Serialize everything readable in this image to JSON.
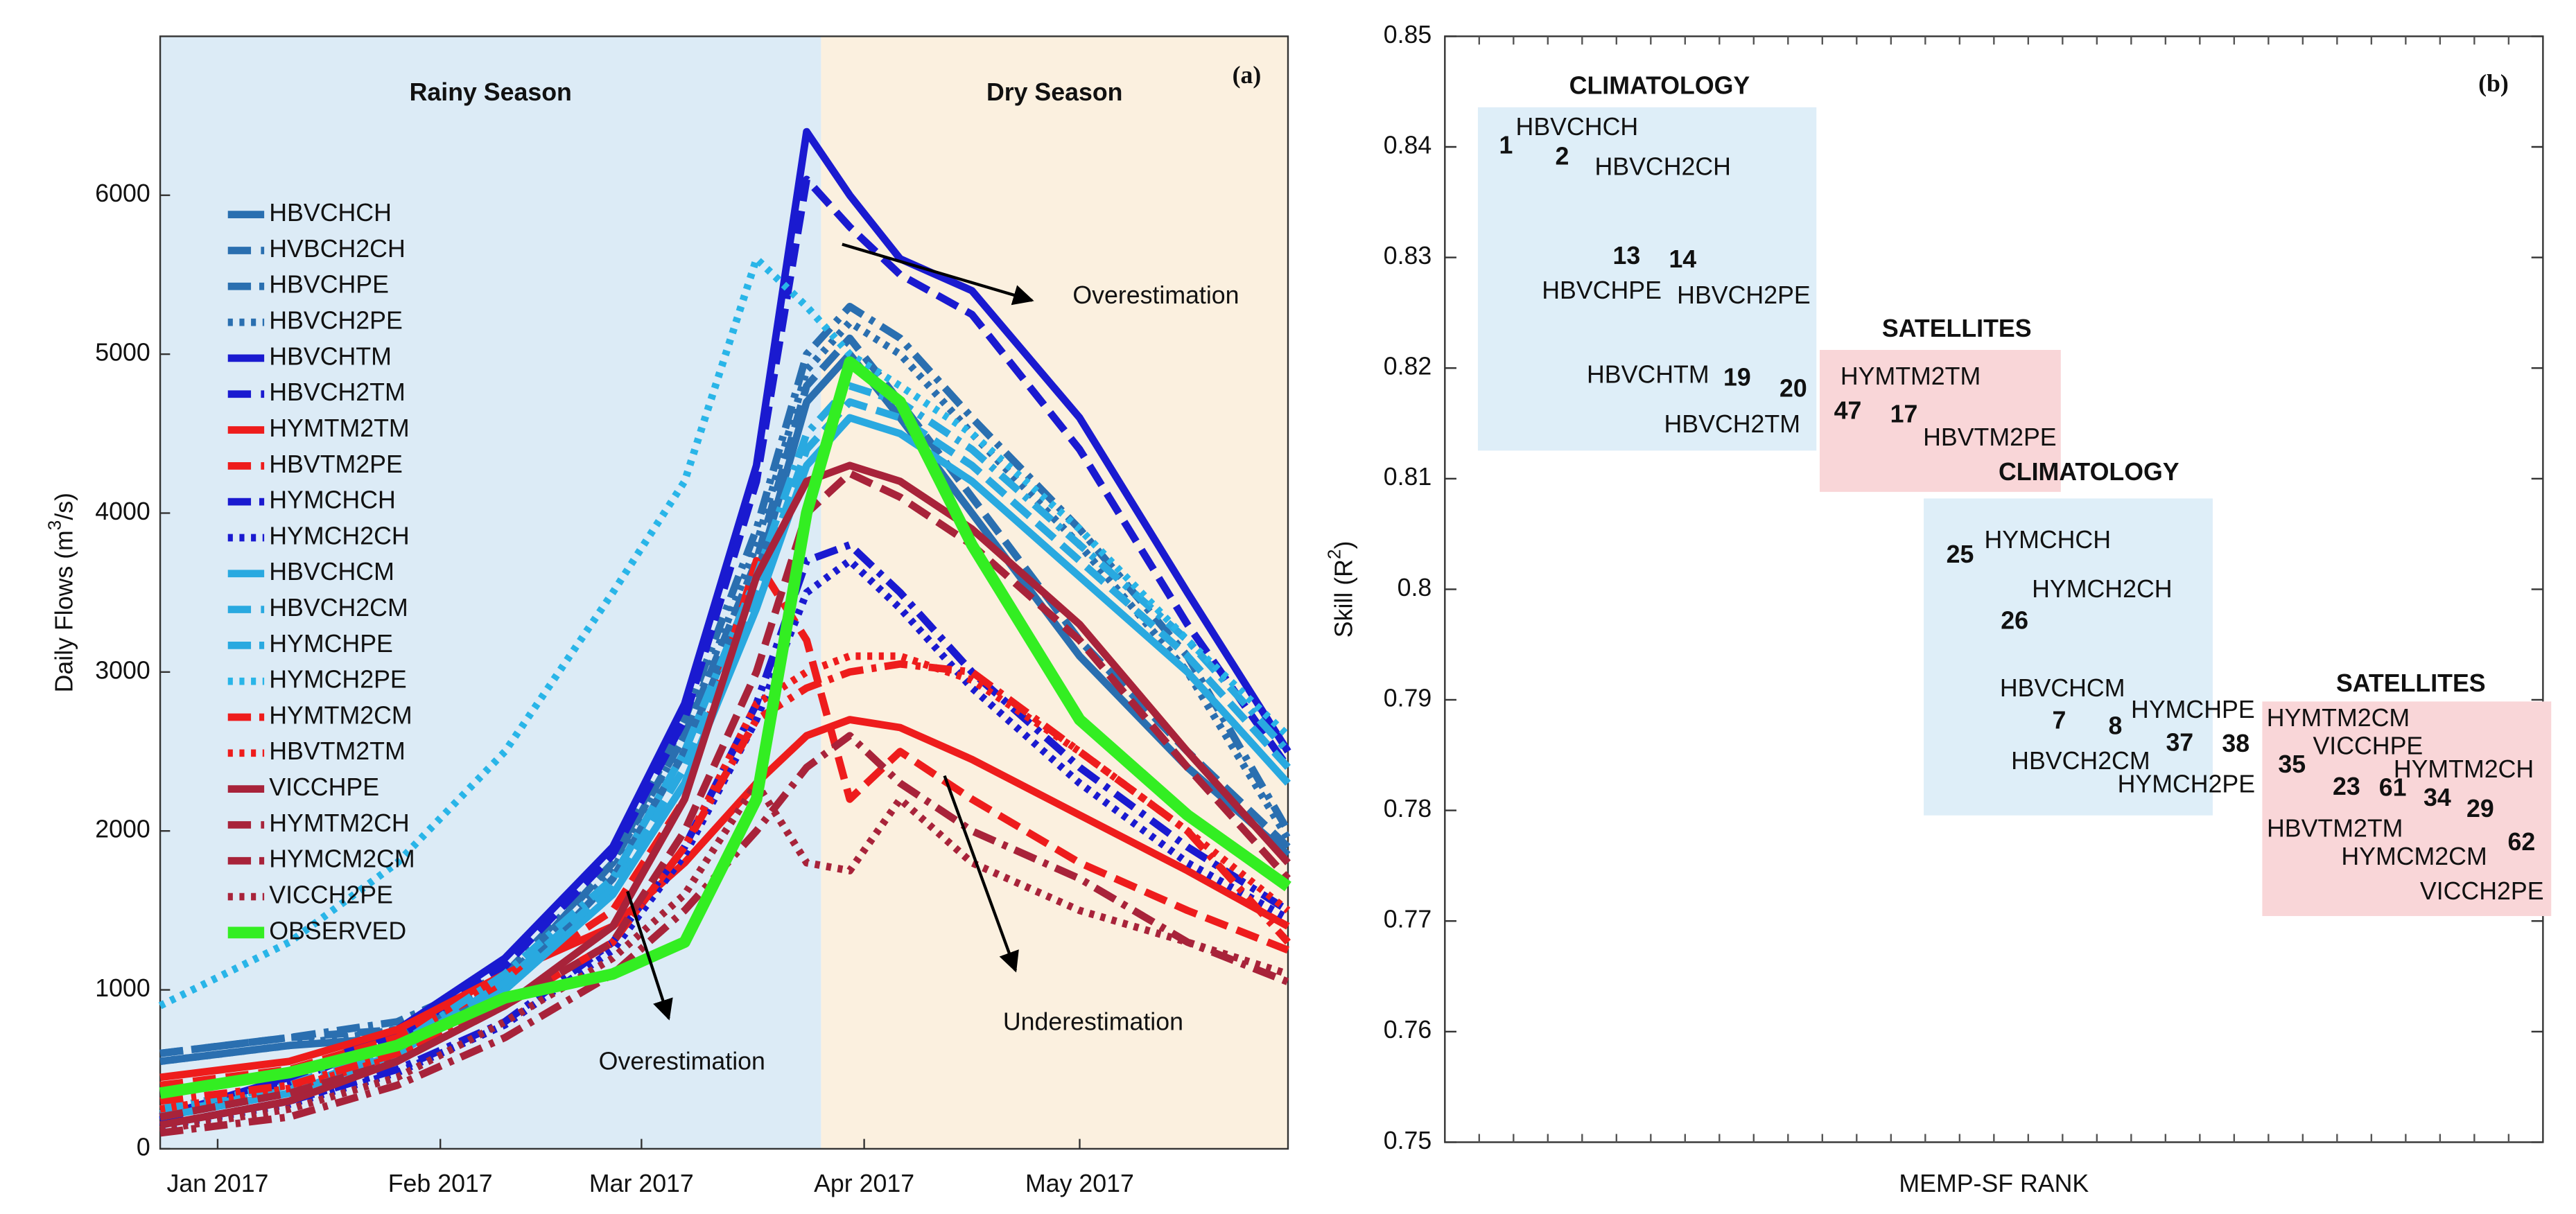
{
  "chart_data": [
    {
      "type": "line",
      "panel_label": "(a)",
      "ylabel_parts": [
        "Daily Flows (m",
        "3",
        "/s)"
      ],
      "xlim": [
        -8,
        149
      ],
      "xticks": [
        {
          "value": 0,
          "label": "Jan 2017"
        },
        {
          "value": 31,
          "label": "Feb 2017"
        },
        {
          "value": 59,
          "label": "Mar 2017"
        },
        {
          "value": 90,
          "label": "Apr 2017"
        },
        {
          "value": 120,
          "label": "May 2017"
        }
      ],
      "ylim": [
        0,
        7000
      ],
      "yticks": [
        0,
        1000,
        2000,
        3000,
        4000,
        5000,
        6000
      ],
      "regions": [
        {
          "label": "Rainy Season",
          "x_range": [
            -8,
            84
          ],
          "color": "#dcebf6",
          "text_color": "#1f78c8"
        },
        {
          "label": "Dry Season",
          "x_range": [
            84,
            149
          ],
          "color": "#fbf0df",
          "text_color": "#f5a623"
        }
      ],
      "annotations": [
        {
          "text": "Overestimation"
        },
        {
          "text": "Overestimation"
        },
        {
          "text": "Underestimation"
        }
      ],
      "x": [
        -8,
        10,
        25,
        40,
        55,
        65,
        75,
        82,
        88,
        95,
        105,
        120,
        135,
        149
      ],
      "series": [
        {
          "name": "HBVCHCH",
          "color": "#2a6fb0",
          "dash": "solid",
          "values": [
            550,
            650,
            700,
            1000,
            1700,
            2500,
            3600,
            4700,
            5000,
            4600,
            4000,
            3100,
            2400,
            1850
          ]
        },
        {
          "name": "HVBCH2CH",
          "color": "#2a6fb0",
          "dash": "dashed",
          "values": [
            600,
            700,
            750,
            1050,
            1800,
            2600,
            3700,
            4800,
            5100,
            4700,
            4100,
            3200,
            2500,
            1900
          ]
        },
        {
          "name": "HBVCHPE",
          "color": "#2a6fb0",
          "dash": "dashdot",
          "values": [
            600,
            700,
            800,
            1100,
            1800,
            2700,
            3900,
            5000,
            5300,
            5100,
            4600,
            3900,
            3100,
            2000
          ]
        },
        {
          "name": "HBVCH2PE",
          "color": "#2a6fb0",
          "dash": "dotted",
          "values": [
            550,
            650,
            750,
            1050,
            1750,
            2600,
            3800,
            4900,
            5200,
            5000,
            4500,
            3800,
            3000,
            1950
          ]
        },
        {
          "name": "HBVCHTM",
          "color": "#1a1ad0",
          "dash": "solid",
          "values": [
            200,
            450,
            750,
            1200,
            1900,
            2800,
            4300,
            6400,
            6000,
            5600,
            5400,
            4600,
            3500,
            2500
          ]
        },
        {
          "name": "HBVCH2TM",
          "color": "#1a1ad0",
          "dash": "dashed",
          "values": [
            180,
            420,
            700,
            1150,
            1850,
            2700,
            4200,
            6100,
            5800,
            5500,
            5250,
            4400,
            3300,
            2400
          ]
        },
        {
          "name": "HYMTM2TM",
          "color": "#ee1c1c",
          "dash": "solid",
          "values": [
            450,
            550,
            750,
            1100,
            1400,
            1800,
            2300,
            2600,
            2700,
            2650,
            2450,
            2100,
            1750,
            1400
          ]
        },
        {
          "name": "HBVTM2PE",
          "color": "#ee1c1c",
          "dash": "dashed",
          "values": [
            400,
            500,
            700,
            1050,
            1500,
            2200,
            3700,
            3200,
            2200,
            2500,
            2200,
            1800,
            1500,
            1250
          ]
        },
        {
          "name": "HYMCHCH",
          "color": "#1a1ad0",
          "dash": "dashdot",
          "values": [
            150,
            300,
            500,
            800,
            1300,
            1900,
            2800,
            3700,
            3800,
            3500,
            3000,
            2400,
            1900,
            1500
          ]
        },
        {
          "name": "HYMCH2CH",
          "color": "#1a1ad0",
          "dash": "dotted",
          "values": [
            140,
            280,
            480,
            780,
            1250,
            1850,
            2700,
            3500,
            3700,
            3400,
            2900,
            2300,
            1800,
            1450
          ]
        },
        {
          "name": "HBVCHCM",
          "color": "#29a9e0",
          "dash": "solid",
          "values": [
            200,
            350,
            600,
            1000,
            1600,
            2300,
            3400,
            4300,
            4600,
            4500,
            4200,
            3600,
            3000,
            2300
          ]
        },
        {
          "name": "HBVCH2CM",
          "color": "#29a9e0",
          "dash": "dashed",
          "values": [
            220,
            370,
            620,
            1050,
            1650,
            2400,
            3500,
            4400,
            4700,
            4600,
            4300,
            3700,
            3100,
            2400
          ]
        },
        {
          "name": "HYMCHPE",
          "color": "#29a9e0",
          "dash": "dashdot",
          "values": [
            250,
            400,
            650,
            1100,
            1700,
            2500,
            3600,
            4500,
            4800,
            4700,
            4400,
            3800,
            3200,
            2500
          ]
        },
        {
          "name": "HYMCH2PE",
          "color": "#29b5e8",
          "dash": "dotted",
          "values": [
            900,
            1300,
            1800,
            2500,
            3500,
            4200,
            5600,
            5300,
            5000,
            4800,
            4500,
            3900,
            3200,
            2600
          ]
        },
        {
          "name": "HYMTM2CM",
          "color": "#ee1c1c",
          "dash": "dashdot",
          "values": [
            300,
            400,
            600,
            900,
            1300,
            1900,
            2700,
            2900,
            3000,
            3050,
            3000,
            2500,
            2000,
            1300
          ]
        },
        {
          "name": "HBVTM2TM",
          "color": "#ee1c1c",
          "dash": "dotted",
          "values": [
            250,
            380,
            580,
            900,
            1300,
            1900,
            2800,
            3000,
            3100,
            3100,
            2950,
            2500,
            2000,
            1500
          ]
        },
        {
          "name": "VICCHPE",
          "color": "#a8233a",
          "dash": "solid",
          "values": [
            150,
            300,
            550,
            900,
            1400,
            2200,
            3600,
            4200,
            4300,
            4200,
            3900,
            3300,
            2500,
            1800
          ]
        },
        {
          "name": "HYMTM2CH",
          "color": "#a8233a",
          "dash": "dashed",
          "values": [
            200,
            350,
            550,
            900,
            1300,
            2000,
            3000,
            4000,
            4250,
            4100,
            3800,
            3200,
            2400,
            1700
          ]
        },
        {
          "name": "HYMCM2CM",
          "color": "#a8233a",
          "dash": "dashdot",
          "values": [
            100,
            200,
            400,
            700,
            1100,
            1500,
            2000,
            2400,
            2600,
            2300,
            2000,
            1700,
            1300,
            1050
          ]
        },
        {
          "name": "VICCH2PE",
          "color": "#a8233a",
          "dash": "dotted",
          "values": [
            120,
            250,
            450,
            800,
            1200,
            1600,
            2300,
            1800,
            1750,
            2200,
            1800,
            1500,
            1300,
            1100
          ]
        },
        {
          "name": "OBSERVED",
          "color": "#33ee22",
          "dash": "solid",
          "width": 7,
          "values": [
            350,
            480,
            650,
            950,
            1100,
            1300,
            2200,
            4000,
            4950,
            4700,
            3800,
            2700,
            2100,
            1650
          ]
        }
      ]
    },
    {
      "type": "label_scatter",
      "panel_label": "(b)",
      "xlabel": "MEMP-SF RANK",
      "ylabel_parts": [
        "Skill (R",
        "2",
        ")"
      ],
      "ylim": [
        0.75,
        0.85
      ],
      "yticks": [
        0.75,
        0.76,
        0.77,
        0.78,
        0.79,
        0.8,
        0.81,
        0.82,
        0.83,
        0.84,
        0.85
      ],
      "groups": [
        {
          "label": "CLIMATOLOGY",
          "color": "#1a7abf",
          "fill": "#deeef8",
          "items": [
            {
              "rank": 1,
              "name": "HBVCHCH",
              "skill": 0.84,
              "color": "#1a7abf"
            },
            {
              "rank": 2,
              "name": "HBVCH2CH",
              "skill": 0.839,
              "color": "#1a7abf"
            },
            {
              "rank": 13,
              "name": "HBVCHPE",
              "skill": 0.83,
              "color": "#1a7abf"
            },
            {
              "rank": 14,
              "name": "HBVCH2PE",
              "skill": 0.8297,
              "color": "#1a7abf"
            },
            {
              "rank": 19,
              "name": "HBVCHTM",
              "skill": 0.819,
              "color": "#1a1ad0"
            },
            {
              "rank": 20,
              "name": "HBVCH2TM",
              "skill": 0.818,
              "color": "#1a1ad0"
            }
          ]
        },
        {
          "label": "SATELLITES",
          "color": "#b0102a",
          "fill": "#f9d6d8",
          "items": [
            {
              "rank": 47,
              "name": "HYMTM2TM",
              "skill": 0.816,
              "color": "#ee1c1c"
            },
            {
              "rank": 17,
              "name": "HBVTM2PE",
              "skill": 0.8157,
              "color": "#ee1c1c"
            }
          ]
        },
        {
          "label": "CLIMATOLOGY",
          "color": "#1a7abf",
          "fill": "#deeef8",
          "items": [
            {
              "rank": 25,
              "name": "HYMCHCH",
              "skill": 0.803,
              "color": "#1a1ad0"
            },
            {
              "rank": 26,
              "name": "HYMCH2CH",
              "skill": 0.797,
              "color": "#1a1ad0"
            },
            {
              "rank": 7,
              "name": "HBVCHCM",
              "skill": 0.788,
              "color": "#29b5e8"
            },
            {
              "rank": 8,
              "name": "HBVCH2CM",
              "skill": 0.7875,
              "color": "#29b5e8"
            },
            {
              "rank": 37,
              "name": "HYMCHPE",
              "skill": 0.786,
              "color": "#29b5e8"
            },
            {
              "rank": 38,
              "name": "HYMCH2PE",
              "skill": 0.7859,
              "color": "#29b5e8"
            }
          ]
        },
        {
          "label": "SATELLITES",
          "color": "#b0102a",
          "fill": "#f9d6d8",
          "items": [
            {
              "rank": 35,
              "name": "HYMTM2CM",
              "skill": 0.784,
              "color": "#c8102e"
            },
            {
              "rank": 23,
              "name": "VICCHPE",
              "skill": 0.782,
              "color": "#b0102a"
            },
            {
              "rank": 61,
              "name": "HYMTM2CH",
              "skill": 0.7819,
              "color": "#b0102a"
            },
            {
              "rank": 34,
              "name": "HBVTM2TM",
              "skill": 0.781,
              "color": "#c8102e"
            },
            {
              "rank": 29,
              "name": "HYMCM2CM",
              "skill": 0.78,
              "color": "#b0102a"
            },
            {
              "rank": 62,
              "name": "VICCH2PE",
              "skill": 0.777,
              "color": "#b0102a"
            }
          ]
        }
      ]
    }
  ]
}
